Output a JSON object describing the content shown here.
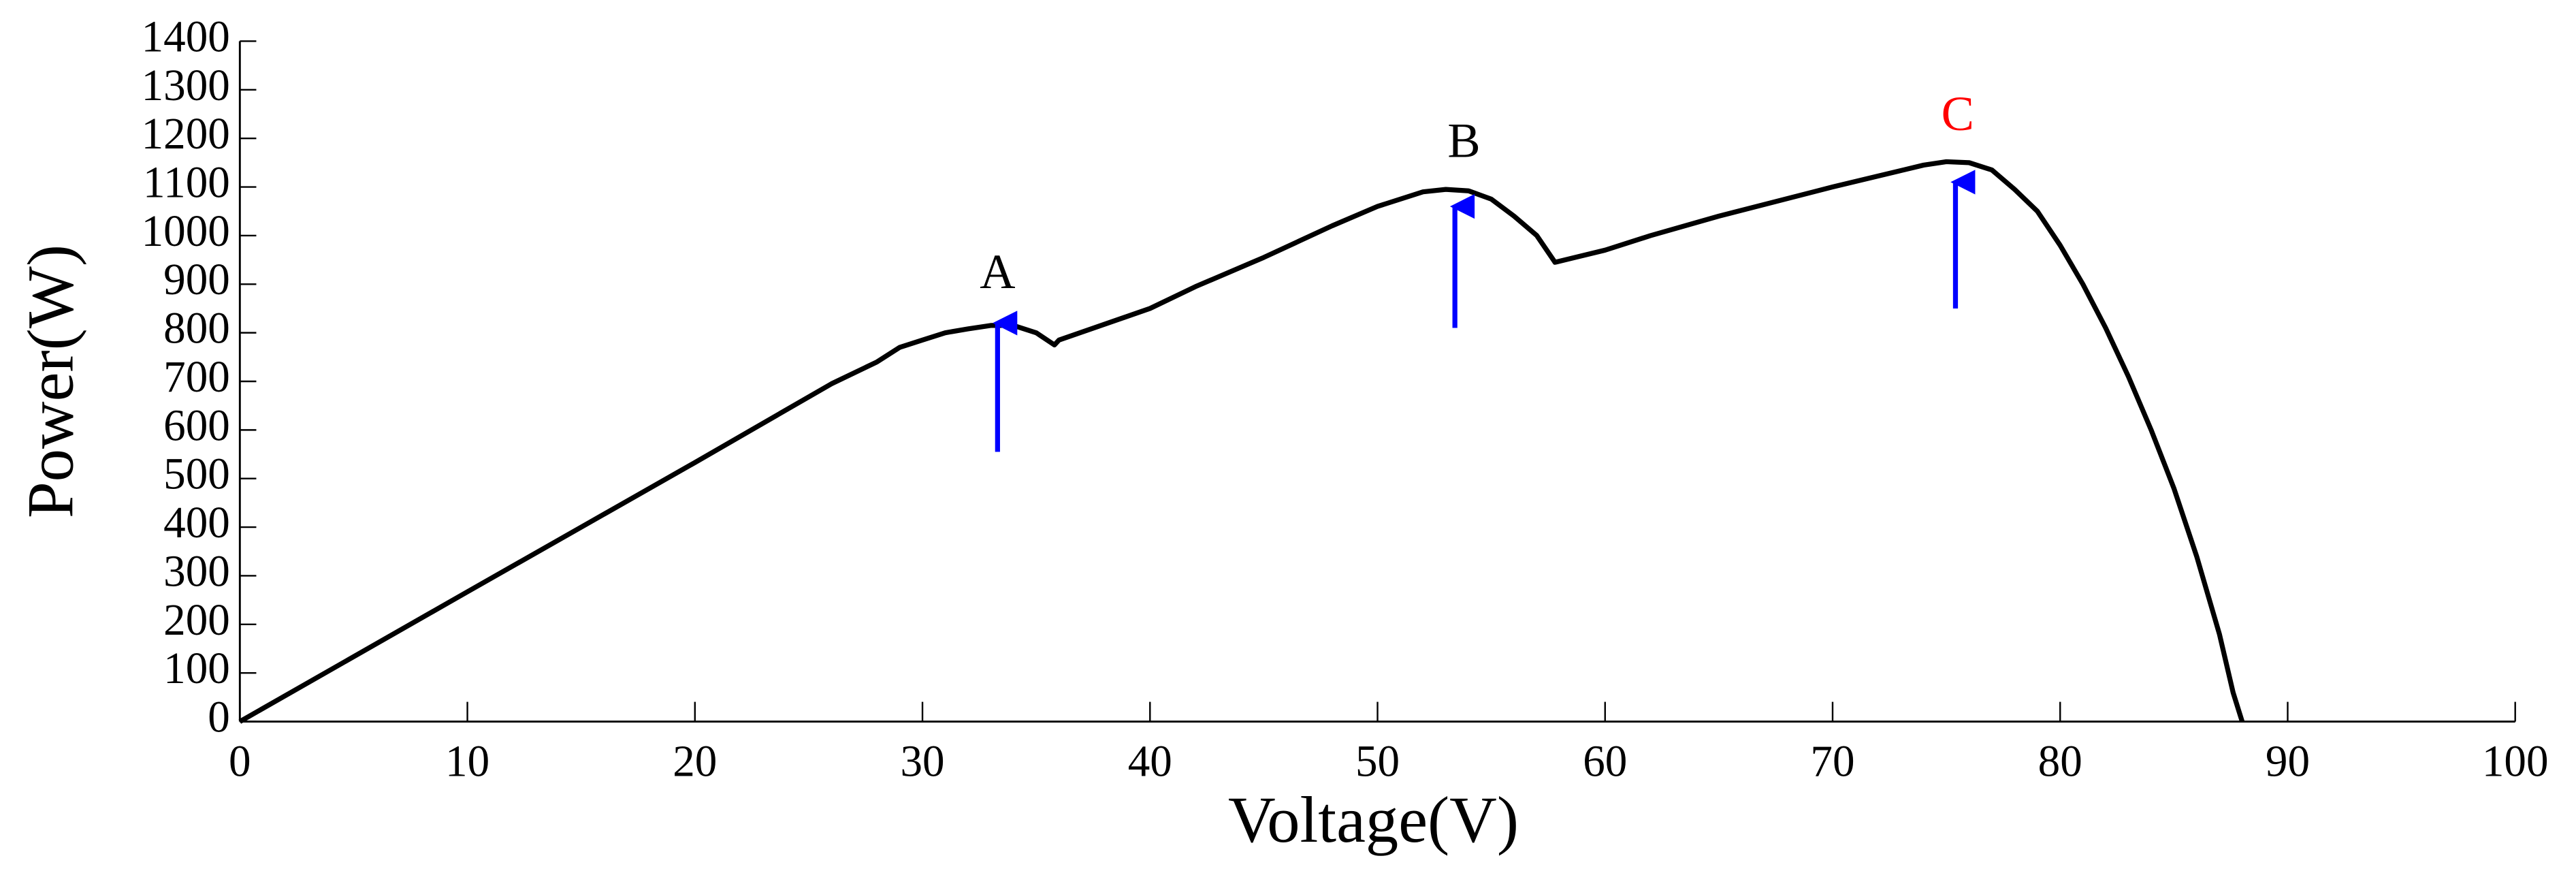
{
  "chart_data": {
    "type": "line",
    "xlabel": "Voltage(V)",
    "ylabel": "Power(W)",
    "x": [
      0,
      10,
      20,
      26,
      28,
      29,
      30,
      31,
      32,
      33,
      34,
      35,
      35.8,
      36,
      40,
      42,
      45,
      48,
      50,
      52,
      53,
      54,
      55,
      56,
      57,
      57.8,
      60,
      62,
      65,
      70,
      74,
      75,
      76,
      77,
      78,
      79,
      80,
      81,
      82,
      83,
      84,
      85,
      86,
      87,
      87.6,
      88
    ],
    "values": [
      0,
      267,
      533,
      695,
      740,
      770,
      785,
      800,
      808,
      815,
      815,
      800,
      775,
      785,
      850,
      895,
      955,
      1020,
      1060,
      1090,
      1095,
      1092,
      1075,
      1040,
      1000,
      945,
      970,
      1000,
      1040,
      1100,
      1145,
      1152,
      1150,
      1135,
      1095,
      1050,
      980,
      900,
      810,
      710,
      600,
      480,
      340,
      180,
      60,
      0
    ],
    "color": "#000000",
    "xlim": [
      0,
      100
    ],
    "xticks": [
      0,
      10,
      20,
      30,
      40,
      50,
      60,
      70,
      80,
      90,
      100
    ],
    "ylim": [
      0,
      1400
    ],
    "yticks": [
      0,
      100,
      200,
      300,
      400,
      500,
      600,
      700,
      800,
      900,
      1000,
      1100,
      1200,
      1300,
      1400
    ],
    "annotations": [
      {
        "text": "A",
        "x": 33.3,
        "y": 915,
        "color": "#000000"
      },
      {
        "text": "B",
        "x": 53.8,
        "y": 1185,
        "color": "#000000"
      },
      {
        "text": "C",
        "x": 75.5,
        "y": 1240,
        "color": "#ff0000"
      }
    ],
    "arrows": [
      {
        "x": 33.3,
        "y0": 555,
        "y1": 820,
        "color": "#0000ff"
      },
      {
        "x": 53.4,
        "y0": 810,
        "y1": 1060,
        "color": "#0000ff"
      },
      {
        "x": 75.4,
        "y0": 850,
        "y1": 1110,
        "color": "#0000ff"
      }
    ]
  }
}
